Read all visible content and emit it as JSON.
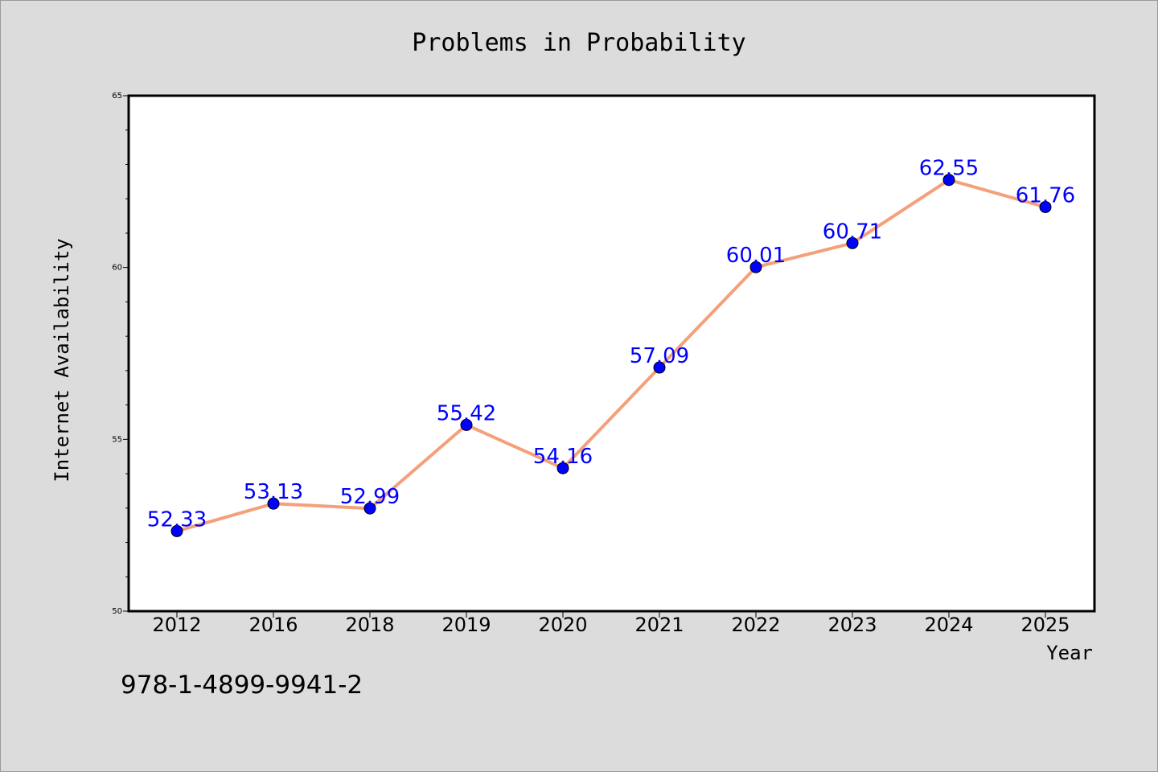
{
  "chart_data": {
    "type": "line",
    "title": "Problems in Probability",
    "xlabel": "Year",
    "ylabel": "Internet Availability",
    "categories": [
      "2012",
      "2016",
      "2018",
      "2019",
      "2020",
      "2021",
      "2022",
      "2023",
      "2024",
      "2025"
    ],
    "series": [
      {
        "values": [
          52.33,
          53.13,
          52.99,
          55.42,
          54.16,
          57.09,
          60.01,
          60.71,
          62.55,
          61.76
        ],
        "data_labels": [
          "52.33",
          "53.13",
          "52.99",
          "55.42",
          "54.16",
          "57.09",
          "60.01",
          "60.71",
          "62.55",
          "61.76"
        ]
      }
    ],
    "ylim": [
      50,
      65
    ],
    "yticks": [
      "50",
      "55",
      "60",
      "65"
    ],
    "grid": false,
    "colors": {
      "line": "#f4a07a",
      "marker": "#0000ff",
      "label": "#0000ff",
      "background": "#dcdcdc",
      "plot_background": "#ffffff"
    }
  },
  "footer": {
    "isbn": "978-1-4899-9941-2"
  }
}
